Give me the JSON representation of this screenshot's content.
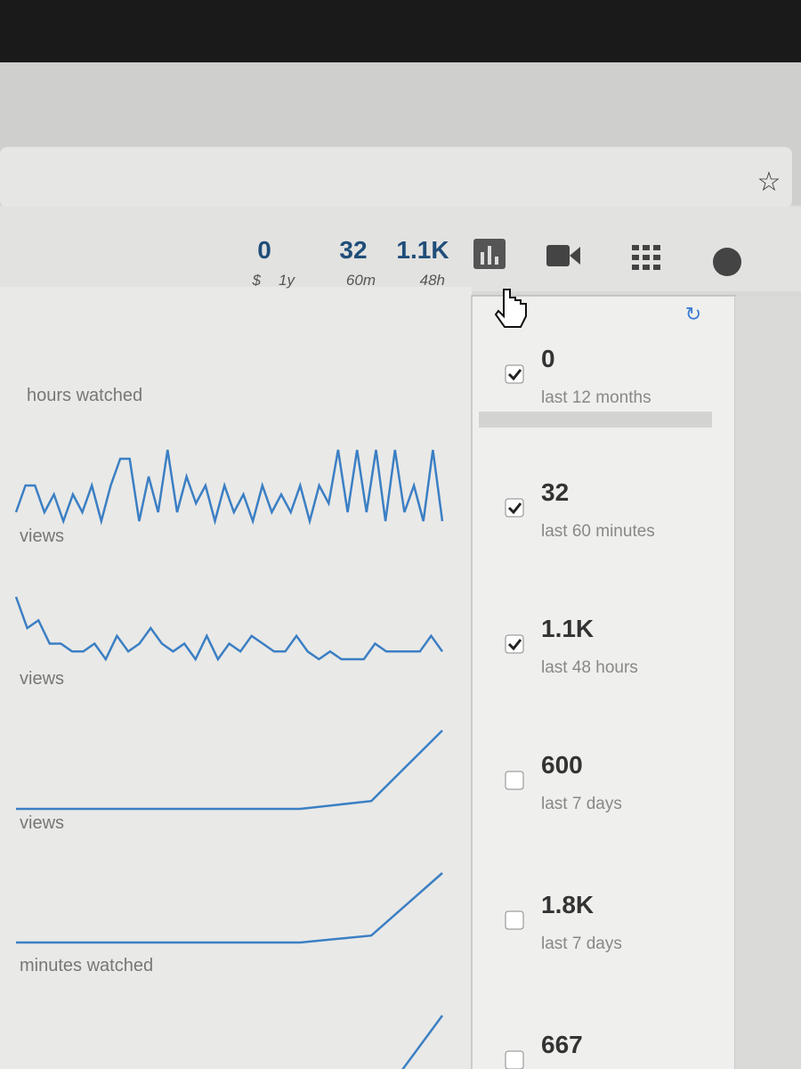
{
  "toolbar": {
    "stats": [
      {
        "value": "0",
        "unit": "$",
        "period": "1y"
      },
      {
        "value": "32",
        "period": "60m"
      },
      {
        "value": "1.1K",
        "period": "48h"
      }
    ]
  },
  "sparklines": [
    {
      "label": "hours watched"
    },
    {
      "label": "views",
      "values": [
        2,
        5,
        5,
        2,
        4,
        1,
        4,
        2,
        5,
        1,
        5,
        8,
        8,
        1,
        6,
        2,
        9,
        2,
        6,
        3,
        5,
        1,
        5,
        2,
        4,
        1,
        5,
        2,
        4,
        2,
        5,
        1,
        5,
        3,
        9,
        2,
        9,
        2,
        9,
        1,
        9,
        2,
        5,
        1,
        9,
        1
      ]
    },
    {
      "label": "views",
      "values": [
        8,
        4,
        5,
        2,
        2,
        1,
        1,
        2,
        0,
        3,
        1,
        2,
        4,
        2,
        1,
        2,
        0,
        3,
        0,
        2,
        1,
        3,
        2,
        1,
        1,
        3,
        1,
        0,
        1,
        0,
        0,
        0,
        2,
        1,
        1,
        1,
        1,
        3,
        1
      ]
    },
    {
      "label": "views",
      "values": [
        0,
        0,
        0,
        0,
        0,
        1,
        10
      ]
    },
    {
      "label": "minutes watched",
      "values": [
        0,
        0,
        0,
        0,
        0,
        1,
        10
      ]
    },
    {
      "values": [
        0,
        0,
        0,
        0,
        0,
        1,
        10
      ]
    }
  ],
  "panel": {
    "items": [
      {
        "value": "0",
        "label": "last 12 months",
        "checked": true
      },
      {
        "value": "32",
        "label": "last 60 minutes",
        "checked": true
      },
      {
        "value": "1.1K",
        "label": "last 48 hours",
        "checked": true
      },
      {
        "value": "600",
        "label": "last 7 days",
        "checked": false
      },
      {
        "value": "1.8K",
        "label": "last 7 days",
        "checked": false
      },
      {
        "value": "667",
        "checked": false
      }
    ]
  }
}
